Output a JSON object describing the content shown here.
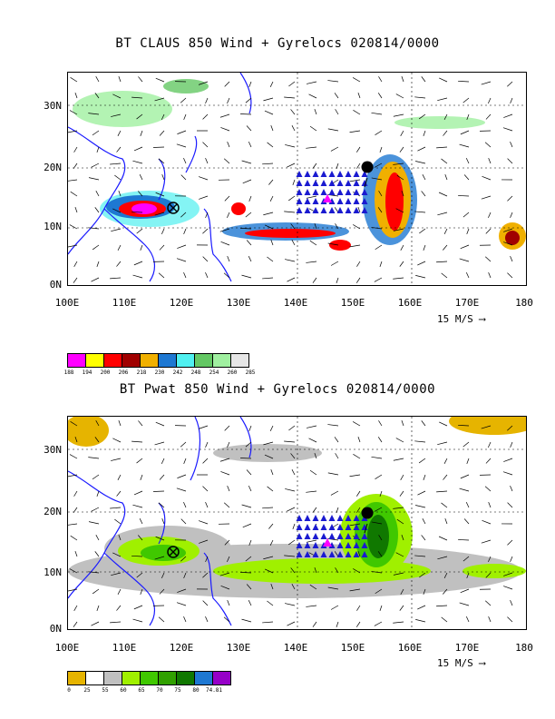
{
  "panels": [
    {
      "title": "BT CLAUS 850 Wind + Gyrelocs 020814/0000",
      "lat_labels": [
        "30N",
        "20N",
        "10N",
        "0N"
      ],
      "lon_labels": [
        "100E",
        "110E",
        "120E",
        "130E",
        "140E",
        "150E",
        "160E",
        "170E",
        "180"
      ],
      "scale_label": "15 M/S",
      "legend": {
        "colors": [
          "#ff00ff",
          "#ffff00",
          "#ff0000",
          "#a00000",
          "#f0b000",
          "#1e78d2",
          "#50f0f0",
          "#64c864",
          "#a0f0a0",
          "#e6e6e6"
        ],
        "ticks": [
          "188",
          "194",
          "200",
          "206",
          "218",
          "230",
          "242",
          "248",
          "254",
          "260",
          "285"
        ]
      }
    },
    {
      "title": "BT Pwat 850 Wind + Gyrelocs 020814/0000",
      "lat_labels": [
        "30N",
        "20N",
        "10N",
        "0N"
      ],
      "lon_labels": [
        "100E",
        "110E",
        "120E",
        "130E",
        "140E",
        "150E",
        "160E",
        "170E",
        "180"
      ],
      "scale_label": "15 M/S",
      "legend": {
        "colors": [
          "#e6b400",
          "#ffffff",
          "#c0c0c0",
          "#a0f000",
          "#40c800",
          "#30a000",
          "#107800",
          "#1e78d2",
          "#9600c8"
        ],
        "ticks": [
          "0",
          "25",
          "55",
          "60",
          "65",
          "70",
          "75",
          "80",
          "74.81"
        ]
      }
    }
  ]
}
